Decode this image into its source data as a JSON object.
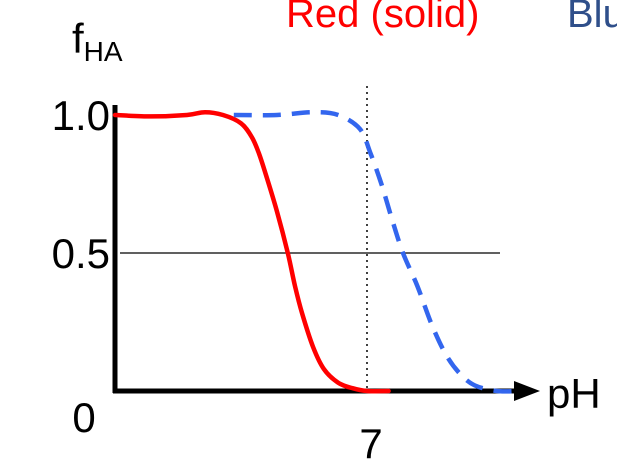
{
  "chart_data": {
    "type": "line",
    "ylabel": {
      "main": "f",
      "sub": "HA"
    },
    "xlabel": "pH",
    "y_ticks": [
      {
        "value": 1.0,
        "label": "1.0"
      },
      {
        "value": 0.5,
        "label": "0.5"
      },
      {
        "value": 0.0,
        "label": "0"
      }
    ],
    "x_ticks": [
      {
        "value": 7,
        "label": "7"
      }
    ],
    "ylim": [
      0,
      1.05
    ],
    "xlim": [
      0,
      12.8
    ],
    "reference_lines": [
      {
        "orientation": "horizontal",
        "value": 0.5,
        "style": "solid"
      },
      {
        "orientation": "vertical",
        "value": 7,
        "style": "dotted"
      }
    ],
    "series": [
      {
        "name": "Red (solid)",
        "color": "#ff0000",
        "style": "solid",
        "x": [
          0,
          1,
          2,
          2.5,
          3,
          3.5,
          3.8,
          4.0,
          4.2,
          4.5,
          4.8,
          5.0,
          5.2,
          5.5,
          5.8,
          6.2,
          6.6,
          7.0,
          7.6
        ],
        "y": [
          1.0,
          0.995,
          1.0,
          1.01,
          1.0,
          0.97,
          0.92,
          0.86,
          0.78,
          0.65,
          0.5,
          0.38,
          0.28,
          0.16,
          0.08,
          0.03,
          0.01,
          0.0,
          0.0
        ]
      },
      {
        "name": "Blue (dashed)",
        "color": "#3366ee",
        "style": "dashed",
        "x": [
          3.3,
          4.5,
          5.5,
          6.2,
          6.8,
          7.1,
          7.4,
          7.7,
          8.0,
          8.4,
          8.8,
          9.2,
          9.6,
          10.0,
          10.6,
          11.2
        ],
        "y": [
          1.0,
          1.0,
          1.01,
          1.0,
          0.95,
          0.86,
          0.75,
          0.62,
          0.5,
          0.38,
          0.24,
          0.13,
          0.06,
          0.02,
          0.0,
          0.0
        ]
      }
    ],
    "legend_position": "top"
  }
}
